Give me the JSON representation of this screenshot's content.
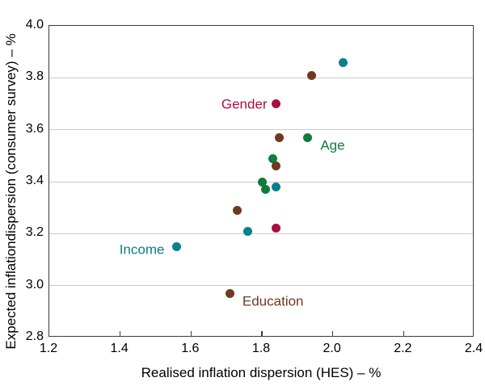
{
  "chart_data": {
    "type": "scatter",
    "title": "",
    "xlabel": "Realised inflation dispersion (HES) – %",
    "ylabel": "Expected inflationdispersion (consumer survey) – %",
    "xlim": [
      1.2,
      2.4
    ],
    "ylim": [
      2.8,
      4.0
    ],
    "x_ticks": [
      1.2,
      1.4,
      1.6,
      1.8,
      2.0,
      2.2,
      2.4
    ],
    "y_ticks": [
      2.8,
      3.0,
      3.2,
      3.4,
      3.6,
      3.8,
      4.0
    ],
    "y_gridlines": [
      3.0,
      3.2,
      3.4,
      3.6,
      3.8
    ],
    "x_inner_ticks": [
      1.4,
      1.6,
      1.8,
      2.0,
      2.2
    ],
    "grid": "horizontal",
    "legend_position": "none",
    "series": [
      {
        "name": "Gender",
        "color": "#ab0e43",
        "points": [
          [
            1.84,
            3.7
          ],
          [
            1.84,
            3.22
          ]
        ]
      },
      {
        "name": "Age",
        "color": "#0e7c3c",
        "points": [
          [
            1.8,
            3.4
          ],
          [
            1.81,
            3.37
          ],
          [
            1.83,
            3.49
          ],
          [
            1.93,
            3.57
          ]
        ]
      },
      {
        "name": "Income",
        "color": "#0b7f8d",
        "points": [
          [
            1.56,
            3.15
          ],
          [
            1.76,
            3.21
          ],
          [
            1.84,
            3.38
          ],
          [
            2.03,
            3.86
          ]
        ]
      },
      {
        "name": "Education",
        "color": "#6f3a1e",
        "points": [
          [
            1.71,
            2.97
          ],
          [
            1.73,
            3.29
          ],
          [
            1.84,
            3.46
          ],
          [
            1.85,
            3.57
          ],
          [
            1.94,
            3.81
          ]
        ]
      }
    ],
    "annotations": [
      {
        "text": "Gender",
        "x": 1.815,
        "y": 3.7,
        "anchor": "right",
        "color": "#ab0e43"
      },
      {
        "text": "Age",
        "x": 1.965,
        "y": 3.54,
        "anchor": "left",
        "color": "#0e7c3c"
      },
      {
        "text": "Income",
        "x": 1.525,
        "y": 3.14,
        "anchor": "right",
        "color": "#0b7f8d"
      },
      {
        "text": "Education",
        "x": 1.745,
        "y": 2.94,
        "anchor": "left",
        "color": "#6f3a1e"
      }
    ]
  },
  "style_colors": {
    "frame": "#3c3c3c",
    "gridline": "#cbcbcb",
    "text": "#000000",
    "background": "#ffffff"
  }
}
